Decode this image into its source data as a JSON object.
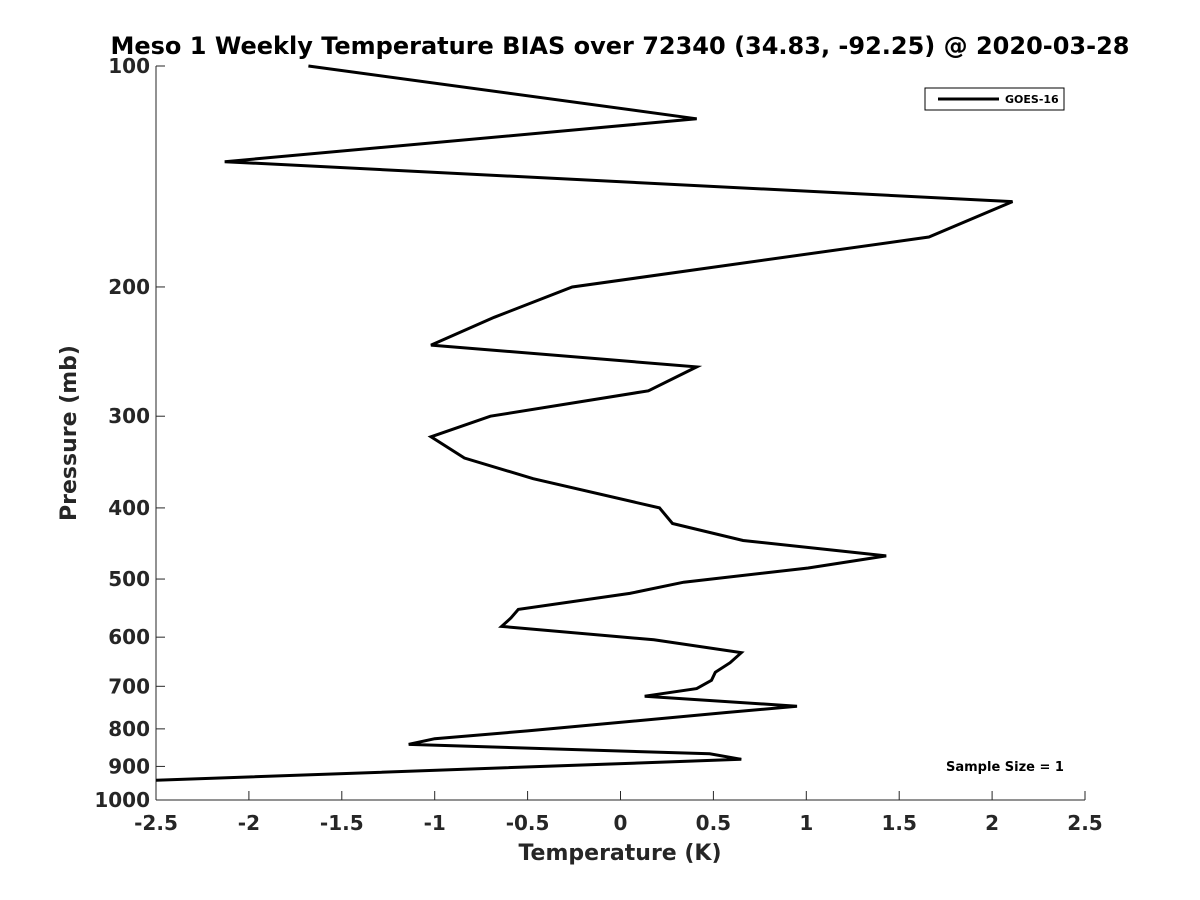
{
  "chart_data": {
    "type": "line",
    "title": "Meso 1 Weekly Temperature BIAS over 72340 (34.83, -92.25) @ 2020-03-28",
    "xlabel": "Temperature (K)",
    "ylabel": "Pressure (mb)",
    "xlim": [
      -2.5,
      2.5
    ],
    "ylim": [
      100,
      1000
    ],
    "y_scale": "log",
    "y_reversed": true,
    "x_ticks": [
      -2.5,
      -2,
      -1.5,
      -1,
      -0.5,
      0,
      0.5,
      1,
      1.5,
      2,
      2.5
    ],
    "x_tick_labels": [
      "-2.5",
      "-2",
      "-1.5",
      "-1",
      "-0.5",
      "0",
      "0.5",
      "1",
      "1.5",
      "2",
      "2.5"
    ],
    "y_ticks": [
      100,
      200,
      300,
      400,
      500,
      600,
      700,
      800,
      900,
      1000
    ],
    "y_tick_labels": [
      "100",
      "200",
      "300",
      "400",
      "500",
      "600",
      "700",
      "800",
      "900",
      "1000"
    ],
    "grid": false,
    "legend": {
      "position": "top-right",
      "entries": [
        "GOES-16"
      ]
    },
    "annotation": "Sample Size = 1",
    "line_color": "#000000",
    "series": [
      {
        "name": "GOES-16",
        "x": [
          -1.68,
          0.41,
          -2.13,
          2.11,
          1.66,
          -0.26,
          -0.68,
          -1.02,
          0.41,
          0.15,
          -0.7,
          -1.02,
          -0.84,
          -0.47,
          0.21,
          0.28,
          0.66,
          1.43,
          1.01,
          0.34,
          0.05,
          -0.55,
          -0.59,
          -0.64,
          0.18,
          0.65,
          0.59,
          0.51,
          0.49,
          0.41,
          0.13,
          0.95,
          0.57,
          -0.5,
          -1.0,
          -1.14,
          0.48,
          0.65,
          -2.5
        ],
        "y": [
          100,
          118,
          135,
          153,
          171,
          200,
          220,
          240,
          257,
          277,
          300,
          320,
          342,
          365,
          400,
          420,
          443,
          465,
          483,
          505,
          523,
          550,
          565,
          580,
          605,
          630,
          650,
          670,
          687,
          705,
          722,
          745,
          760,
          805,
          825,
          840,
          865,
          880,
          940
        ]
      }
    ]
  }
}
